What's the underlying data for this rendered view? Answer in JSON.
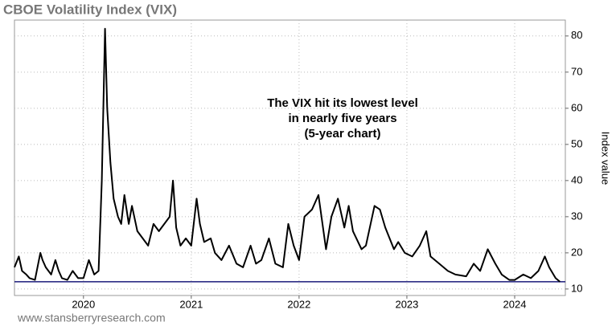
{
  "chart_data": {
    "type": "line",
    "title": "CBOE Volatility Index (VIX)",
    "annotation": [
      "The VIX hit its lowest level",
      "in nearly five years",
      "(5-year chart)"
    ],
    "y_label": "Index value",
    "source": "www.stansberryresearch.com",
    "x": [
      2019.36,
      2019.4,
      2019.43,
      2019.47,
      2019.5,
      2019.55,
      2019.58,
      2019.6,
      2019.62,
      2019.65,
      2019.7,
      2019.74,
      2019.77,
      2019.8,
      2019.85,
      2019.9,
      2019.95,
      2020.0,
      2020.05,
      2020.1,
      2020.14,
      2020.17,
      2020.2,
      2020.22,
      2020.25,
      2020.28,
      2020.32,
      2020.35,
      2020.38,
      2020.42,
      2020.45,
      2020.5,
      2020.55,
      2020.6,
      2020.65,
      2020.7,
      2020.75,
      2020.8,
      2020.83,
      2020.86,
      2020.9,
      2020.95,
      2021.0,
      2021.05,
      2021.08,
      2021.12,
      2021.18,
      2021.22,
      2021.28,
      2021.35,
      2021.42,
      2021.48,
      2021.55,
      2021.6,
      2021.65,
      2021.72,
      2021.78,
      2021.85,
      2021.9,
      2021.95,
      2022.0,
      2022.05,
      2022.12,
      2022.18,
      2022.25,
      2022.3,
      2022.36,
      2022.42,
      2022.46,
      2022.5,
      2022.58,
      2022.62,
      2022.7,
      2022.75,
      2022.8,
      2022.88,
      2022.92,
      2022.98,
      2023.05,
      2023.12,
      2023.18,
      2023.22,
      2023.3,
      2023.38,
      2023.45,
      2023.55,
      2023.62,
      2023.68,
      2023.75,
      2023.82,
      2023.88,
      2023.95,
      2024.0,
      2024.08,
      2024.15,
      2024.22,
      2024.28,
      2024.32,
      2024.38,
      2024.42
    ],
    "series": [
      {
        "name": "VIX",
        "color": "#000000",
        "values": [
          16,
          19,
          15,
          14,
          13,
          12.5,
          17,
          20,
          18,
          16,
          14,
          18,
          15,
          13,
          12.5,
          15,
          13,
          13,
          18,
          14,
          15,
          40,
          82,
          60,
          45,
          35,
          30,
          28,
          36,
          28,
          33,
          26,
          24,
          22,
          28,
          26,
          28,
          30,
          40,
          27,
          22,
          24,
          22,
          35,
          28,
          23,
          24,
          20,
          18,
          22,
          17,
          16,
          22,
          17,
          18,
          24,
          17,
          16,
          28,
          22,
          18,
          30,
          32,
          36,
          21,
          30,
          35,
          27,
          33,
          26,
          21,
          22,
          33,
          32,
          27,
          21,
          23,
          20,
          19,
          22,
          26,
          19,
          17,
          15,
          14,
          13.5,
          17,
          15,
          21,
          17,
          14,
          12.5,
          12.5,
          14,
          13,
          15,
          19,
          16,
          13,
          12
        ]
      }
    ],
    "reference_line": {
      "value": 12,
      "color": "#1a1a7a"
    },
    "xlim": [
      2019.36,
      2024.47
    ],
    "ylim": [
      8.2,
      84.4
    ],
    "xticks": [
      2020,
      2021,
      2022,
      2023,
      2024
    ],
    "yticks": [
      10,
      20,
      30,
      40,
      50,
      60,
      70,
      80
    ],
    "grid": true
  }
}
